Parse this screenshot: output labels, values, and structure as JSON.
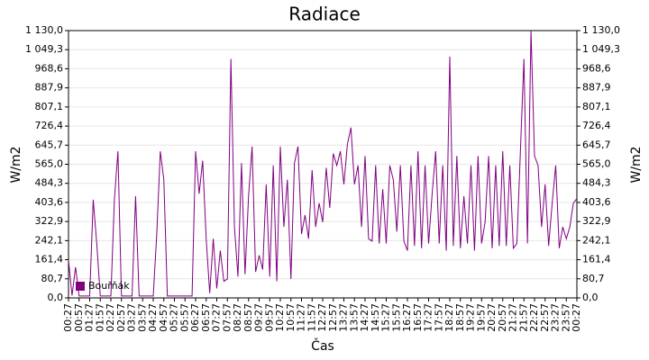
{
  "chart_data": {
    "type": "line",
    "title": "Radiace",
    "xlabel": "Čas",
    "ylabel": "W/m2",
    "xlim": [
      0,
      1440
    ],
    "ylim": [
      0,
      1130
    ],
    "grid": true,
    "legend": "lower left",
    "yticks": [
      {
        "value": 0,
        "label": "0,0"
      },
      {
        "value": 80.7,
        "label": "80,7"
      },
      {
        "value": 161.4,
        "label": "161,4"
      },
      {
        "value": 242.1,
        "label": "242,1"
      },
      {
        "value": 322.9,
        "label": "322,9"
      },
      {
        "value": 403.6,
        "label": "403,6"
      },
      {
        "value": 484.3,
        "label": "484,3"
      },
      {
        "value": 565.0,
        "label": "565,0"
      },
      {
        "value": 645.7,
        "label": "645,7"
      },
      {
        "value": 726.4,
        "label": "726,4"
      },
      {
        "value": 807.1,
        "label": "807,1"
      },
      {
        "value": 887.9,
        "label": "887,9"
      },
      {
        "value": 968.6,
        "label": "968,6"
      },
      {
        "value": 1049.3,
        "label": "1 049,3"
      },
      {
        "value": 1130.0,
        "label": "1 130,0"
      }
    ],
    "xticks": [
      {
        "value": 0,
        "label": "00:27"
      },
      {
        "value": 30,
        "label": "00:57"
      },
      {
        "value": 60,
        "label": "01:27"
      },
      {
        "value": 90,
        "label": "01:57"
      },
      {
        "value": 120,
        "label": "02:27"
      },
      {
        "value": 150,
        "label": "02:57"
      },
      {
        "value": 180,
        "label": "03:27"
      },
      {
        "value": 210,
        "label": "03:57"
      },
      {
        "value": 240,
        "label": "04:27"
      },
      {
        "value": 270,
        "label": "04:57"
      },
      {
        "value": 300,
        "label": "05:27"
      },
      {
        "value": 330,
        "label": "05:57"
      },
      {
        "value": 360,
        "label": "06:27"
      },
      {
        "value": 390,
        "label": "06:57"
      },
      {
        "value": 420,
        "label": "07:27"
      },
      {
        "value": 450,
        "label": "07:57"
      },
      {
        "value": 480,
        "label": "08:27"
      },
      {
        "value": 510,
        "label": "08:57"
      },
      {
        "value": 540,
        "label": "09:27"
      },
      {
        "value": 570,
        "label": "09:57"
      },
      {
        "value": 600,
        "label": "10:27"
      },
      {
        "value": 630,
        "label": "10:57"
      },
      {
        "value": 660,
        "label": "11:27"
      },
      {
        "value": 690,
        "label": "11:57"
      },
      {
        "value": 720,
        "label": "12:27"
      },
      {
        "value": 750,
        "label": "12:57"
      },
      {
        "value": 780,
        "label": "13:27"
      },
      {
        "value": 810,
        "label": "13:57"
      },
      {
        "value": 840,
        "label": "14:27"
      },
      {
        "value": 870,
        "label": "14:57"
      },
      {
        "value": 900,
        "label": "15:27"
      },
      {
        "value": 930,
        "label": "15:57"
      },
      {
        "value": 960,
        "label": "16:27"
      },
      {
        "value": 990,
        "label": "16:57"
      },
      {
        "value": 1020,
        "label": "17:27"
      },
      {
        "value": 1050,
        "label": "17:57"
      },
      {
        "value": 1080,
        "label": "18:27"
      },
      {
        "value": 1110,
        "label": "18:57"
      },
      {
        "value": 1140,
        "label": "19:27"
      },
      {
        "value": 1170,
        "label": "19:57"
      },
      {
        "value": 1200,
        "label": "20:27"
      },
      {
        "value": 1230,
        "label": "20:57"
      },
      {
        "value": 1260,
        "label": "21:27"
      },
      {
        "value": 1290,
        "label": "21:57"
      },
      {
        "value": 1320,
        "label": "22:27"
      },
      {
        "value": 1350,
        "label": "22:57"
      },
      {
        "value": 1380,
        "label": "23:27"
      },
      {
        "value": 1410,
        "label": "23:57"
      },
      {
        "value": 1440,
        "label": "00:27"
      }
    ],
    "x": [
      0,
      10,
      20,
      30,
      40,
      50,
      60,
      70,
      80,
      90,
      100,
      110,
      120,
      130,
      140,
      150,
      160,
      170,
      180,
      190,
      200,
      210,
      220,
      230,
      240,
      250,
      260,
      270,
      280,
      290,
      300,
      310,
      320,
      330,
      340,
      350,
      360,
      370,
      380,
      390,
      400,
      410,
      420,
      430,
      440,
      450,
      460,
      470,
      480,
      490,
      500,
      510,
      520,
      530,
      540,
      550,
      560,
      570,
      580,
      590,
      600,
      610,
      620,
      630,
      640,
      650,
      660,
      670,
      680,
      690,
      700,
      710,
      720,
      730,
      740,
      750,
      760,
      770,
      780,
      790,
      800,
      810,
      820,
      830,
      840,
      850,
      860,
      870,
      880,
      890,
      900,
      910,
      920,
      930,
      940,
      950,
      960,
      970,
      980,
      990,
      1000,
      1010,
      1020,
      1030,
      1040,
      1050,
      1060,
      1070,
      1080,
      1090,
      1100,
      1110,
      1120,
      1130,
      1140,
      1150,
      1160,
      1170,
      1180,
      1190,
      1200,
      1210,
      1220,
      1230,
      1240,
      1250,
      1260,
      1270,
      1280,
      1290,
      1300,
      1310,
      1320,
      1330,
      1340,
      1350,
      1360,
      1370,
      1380,
      1390,
      1400,
      1410,
      1420,
      1430,
      1440
    ],
    "series": [
      {
        "name": "Bouřňák",
        "color": "#800080",
        "values": [
          160,
          10,
          130,
          8,
          8,
          8,
          8,
          415,
          230,
          8,
          8,
          8,
          8,
          415,
          620,
          8,
          8,
          8,
          8,
          430,
          8,
          8,
          8,
          8,
          8,
          270,
          620,
          500,
          8,
          8,
          8,
          8,
          8,
          8,
          8,
          8,
          620,
          440,
          580,
          250,
          20,
          250,
          40,
          200,
          70,
          80,
          1010,
          300,
          90,
          570,
          100,
          430,
          640,
          110,
          180,
          120,
          480,
          90,
          560,
          70,
          640,
          300,
          500,
          80,
          570,
          640,
          270,
          350,
          250,
          540,
          300,
          400,
          320,
          550,
          380,
          610,
          560,
          620,
          480,
          650,
          720,
          480,
          560,
          300,
          600,
          250,
          240,
          560,
          230,
          460,
          230,
          560,
          500,
          280,
          560,
          240,
          200,
          560,
          220,
          620,
          210,
          560,
          230,
          440,
          620,
          230,
          560,
          200,
          1020,
          220,
          600,
          210,
          430,
          230,
          560,
          200,
          600,
          230,
          320,
          600,
          210,
          560,
          220,
          620,
          220,
          560,
          210,
          230,
          620,
          1010,
          230,
          1130,
          600,
          560,
          300,
          480,
          220,
          400,
          560,
          210,
          300,
          250,
          300,
          400,
          420
        ]
      }
    ]
  }
}
